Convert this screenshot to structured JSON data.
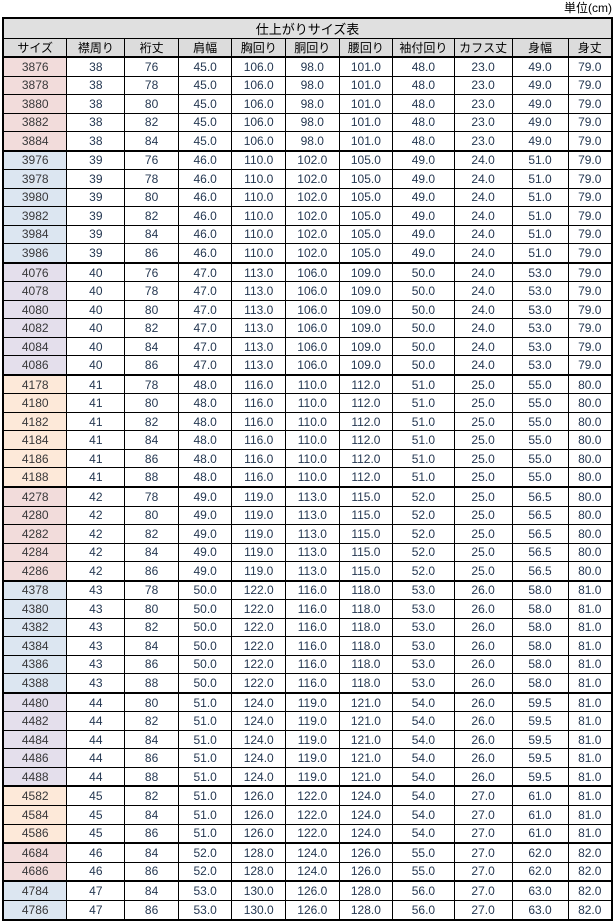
{
  "unit_label": "単位(cm)",
  "table": {
    "title": "仕上がりサイズ表",
    "columns": [
      "サイズ",
      "襟周り",
      "裄丈",
      "肩幅",
      "胸回り",
      "胴回り",
      "腰回り",
      "袖付回り",
      "カフス丈",
      "身幅",
      "身丈"
    ],
    "col_widths_pct": [
      10.5,
      9.5,
      8.8,
      8.8,
      8.8,
      8.8,
      8.8,
      10.1,
      9.5,
      9.2,
      7.2
    ],
    "colors": {
      "title_bg": "#e0e0e0",
      "header_bg": "#dcdcdc",
      "border": "#000000",
      "group_pink": "#f2dcdb",
      "group_blue": "#dce6f1",
      "group_purple": "#e4dfec",
      "group_orange": "#fde9d9"
    },
    "groups": [
      {
        "fill": "#f2dcdb",
        "rows": [
          [
            "3876",
            "38",
            "76",
            "45.0",
            "106.0",
            "98.0",
            "101.0",
            "48.0",
            "23.0",
            "49.0",
            "79.0"
          ],
          [
            "3878",
            "38",
            "78",
            "45.0",
            "106.0",
            "98.0",
            "101.0",
            "48.0",
            "23.0",
            "49.0",
            "79.0"
          ],
          [
            "3880",
            "38",
            "80",
            "45.0",
            "106.0",
            "98.0",
            "101.0",
            "48.0",
            "23.0",
            "49.0",
            "79.0"
          ],
          [
            "3882",
            "38",
            "82",
            "45.0",
            "106.0",
            "98.0",
            "101.0",
            "48.0",
            "23.0",
            "49.0",
            "79.0"
          ],
          [
            "3884",
            "38",
            "84",
            "45.0",
            "106.0",
            "98.0",
            "101.0",
            "48.0",
            "23.0",
            "49.0",
            "79.0"
          ]
        ]
      },
      {
        "fill": "#dce6f1",
        "rows": [
          [
            "3976",
            "39",
            "76",
            "46.0",
            "110.0",
            "102.0",
            "105.0",
            "49.0",
            "24.0",
            "51.0",
            "79.0"
          ],
          [
            "3978",
            "39",
            "78",
            "46.0",
            "110.0",
            "102.0",
            "105.0",
            "49.0",
            "24.0",
            "51.0",
            "79.0"
          ],
          [
            "3980",
            "39",
            "80",
            "46.0",
            "110.0",
            "102.0",
            "105.0",
            "49.0",
            "24.0",
            "51.0",
            "79.0"
          ],
          [
            "3982",
            "39",
            "82",
            "46.0",
            "110.0",
            "102.0",
            "105.0",
            "49.0",
            "24.0",
            "51.0",
            "79.0"
          ],
          [
            "3984",
            "39",
            "84",
            "46.0",
            "110.0",
            "102.0",
            "105.0",
            "49.0",
            "24.0",
            "51.0",
            "79.0"
          ],
          [
            "3986",
            "39",
            "86",
            "46.0",
            "110.0",
            "102.0",
            "105.0",
            "49.0",
            "24.0",
            "51.0",
            "79.0"
          ]
        ]
      },
      {
        "fill": "#e4dfec",
        "rows": [
          [
            "4076",
            "40",
            "76",
            "47.0",
            "113.0",
            "106.0",
            "109.0",
            "50.0",
            "24.0",
            "53.0",
            "79.0"
          ],
          [
            "4078",
            "40",
            "78",
            "47.0",
            "113.0",
            "106.0",
            "109.0",
            "50.0",
            "24.0",
            "53.0",
            "79.0"
          ],
          [
            "4080",
            "40",
            "80",
            "47.0",
            "113.0",
            "106.0",
            "109.0",
            "50.0",
            "24.0",
            "53.0",
            "79.0"
          ],
          [
            "4082",
            "40",
            "82",
            "47.0",
            "113.0",
            "106.0",
            "109.0",
            "50.0",
            "24.0",
            "53.0",
            "79.0"
          ],
          [
            "4084",
            "40",
            "84",
            "47.0",
            "113.0",
            "106.0",
            "109.0",
            "50.0",
            "24.0",
            "53.0",
            "79.0"
          ],
          [
            "4086",
            "40",
            "86",
            "47.0",
            "113.0",
            "106.0",
            "109.0",
            "50.0",
            "24.0",
            "53.0",
            "79.0"
          ]
        ]
      },
      {
        "fill": "#fde9d9",
        "rows": [
          [
            "4178",
            "41",
            "78",
            "48.0",
            "116.0",
            "110.0",
            "112.0",
            "51.0",
            "25.0",
            "55.0",
            "80.0"
          ],
          [
            "4180",
            "41",
            "80",
            "48.0",
            "116.0",
            "110.0",
            "112.0",
            "51.0",
            "25.0",
            "55.0",
            "80.0"
          ],
          [
            "4182",
            "41",
            "82",
            "48.0",
            "116.0",
            "110.0",
            "112.0",
            "51.0",
            "25.0",
            "55.0",
            "80.0"
          ],
          [
            "4184",
            "41",
            "84",
            "48.0",
            "116.0",
            "110.0",
            "112.0",
            "51.0",
            "25.0",
            "55.0",
            "80.0"
          ],
          [
            "4186",
            "41",
            "86",
            "48.0",
            "116.0",
            "110.0",
            "112.0",
            "51.0",
            "25.0",
            "55.0",
            "80.0"
          ],
          [
            "4188",
            "41",
            "88",
            "48.0",
            "116.0",
            "110.0",
            "112.0",
            "51.0",
            "25.0",
            "55.0",
            "80.0"
          ]
        ]
      },
      {
        "fill": "#f2dcdb",
        "rows": [
          [
            "4278",
            "42",
            "78",
            "49.0",
            "119.0",
            "113.0",
            "115.0",
            "52.0",
            "25.0",
            "56.5",
            "80.0"
          ],
          [
            "4280",
            "42",
            "80",
            "49.0",
            "119.0",
            "113.0",
            "115.0",
            "52.0",
            "25.0",
            "56.5",
            "80.0"
          ],
          [
            "4282",
            "42",
            "82",
            "49.0",
            "119.0",
            "113.0",
            "115.0",
            "52.0",
            "25.0",
            "56.5",
            "80.0"
          ],
          [
            "4284",
            "42",
            "84",
            "49.0",
            "119.0",
            "113.0",
            "115.0",
            "52.0",
            "25.0",
            "56.5",
            "80.0"
          ],
          [
            "4286",
            "42",
            "86",
            "49.0",
            "119.0",
            "113.0",
            "115.0",
            "52.0",
            "25.0",
            "56.5",
            "80.0"
          ]
        ]
      },
      {
        "fill": "#dce6f1",
        "rows": [
          [
            "4378",
            "43",
            "78",
            "50.0",
            "122.0",
            "116.0",
            "118.0",
            "53.0",
            "26.0",
            "58.0",
            "81.0"
          ],
          [
            "4380",
            "43",
            "80",
            "50.0",
            "122.0",
            "116.0",
            "118.0",
            "53.0",
            "26.0",
            "58.0",
            "81.0"
          ],
          [
            "4382",
            "43",
            "82",
            "50.0",
            "122.0",
            "116.0",
            "118.0",
            "53.0",
            "26.0",
            "58.0",
            "81.0"
          ],
          [
            "4384",
            "43",
            "84",
            "50.0",
            "122.0",
            "116.0",
            "118.0",
            "53.0",
            "26.0",
            "58.0",
            "81.0"
          ],
          [
            "4386",
            "43",
            "86",
            "50.0",
            "122.0",
            "116.0",
            "118.0",
            "53.0",
            "26.0",
            "58.0",
            "81.0"
          ],
          [
            "4388",
            "43",
            "88",
            "50.0",
            "122.0",
            "116.0",
            "118.0",
            "53.0",
            "26.0",
            "58.0",
            "81.0"
          ]
        ]
      },
      {
        "fill": "#e4dfec",
        "rows": [
          [
            "4480",
            "44",
            "80",
            "51.0",
            "124.0",
            "119.0",
            "121.0",
            "54.0",
            "26.0",
            "59.5",
            "81.0"
          ],
          [
            "4482",
            "44",
            "82",
            "51.0",
            "124.0",
            "119.0",
            "121.0",
            "54.0",
            "26.0",
            "59.5",
            "81.0"
          ],
          [
            "4484",
            "44",
            "84",
            "51.0",
            "124.0",
            "119.0",
            "121.0",
            "54.0",
            "26.0",
            "59.5",
            "81.0"
          ],
          [
            "4486",
            "44",
            "86",
            "51.0",
            "124.0",
            "119.0",
            "121.0",
            "54.0",
            "26.0",
            "59.5",
            "81.0"
          ],
          [
            "4488",
            "44",
            "88",
            "51.0",
            "124.0",
            "119.0",
            "121.0",
            "54.0",
            "26.0",
            "59.5",
            "81.0"
          ]
        ]
      },
      {
        "fill": "#fde9d9",
        "rows": [
          [
            "4582",
            "45",
            "82",
            "51.0",
            "126.0",
            "122.0",
            "124.0",
            "54.0",
            "27.0",
            "61.0",
            "81.0"
          ],
          [
            "4584",
            "45",
            "84",
            "51.0",
            "126.0",
            "122.0",
            "124.0",
            "54.0",
            "27.0",
            "61.0",
            "81.0"
          ],
          [
            "4586",
            "45",
            "86",
            "51.0",
            "126.0",
            "122.0",
            "124.0",
            "54.0",
            "27.0",
            "61.0",
            "81.0"
          ]
        ]
      },
      {
        "fill": "#f2dcdb",
        "rows": [
          [
            "4684",
            "46",
            "84",
            "52.0",
            "128.0",
            "124.0",
            "126.0",
            "55.0",
            "27.0",
            "62.0",
            "82.0"
          ],
          [
            "4686",
            "46",
            "86",
            "52.0",
            "128.0",
            "124.0",
            "126.0",
            "55.0",
            "27.0",
            "62.0",
            "82.0"
          ]
        ]
      },
      {
        "fill": "#dce6f1",
        "rows": [
          [
            "4784",
            "47",
            "84",
            "53.0",
            "130.0",
            "126.0",
            "128.0",
            "56.0",
            "27.0",
            "63.0",
            "82.0"
          ],
          [
            "4786",
            "47",
            "86",
            "53.0",
            "130.0",
            "126.0",
            "128.0",
            "56.0",
            "27.0",
            "63.0",
            "82.0"
          ]
        ]
      }
    ]
  }
}
